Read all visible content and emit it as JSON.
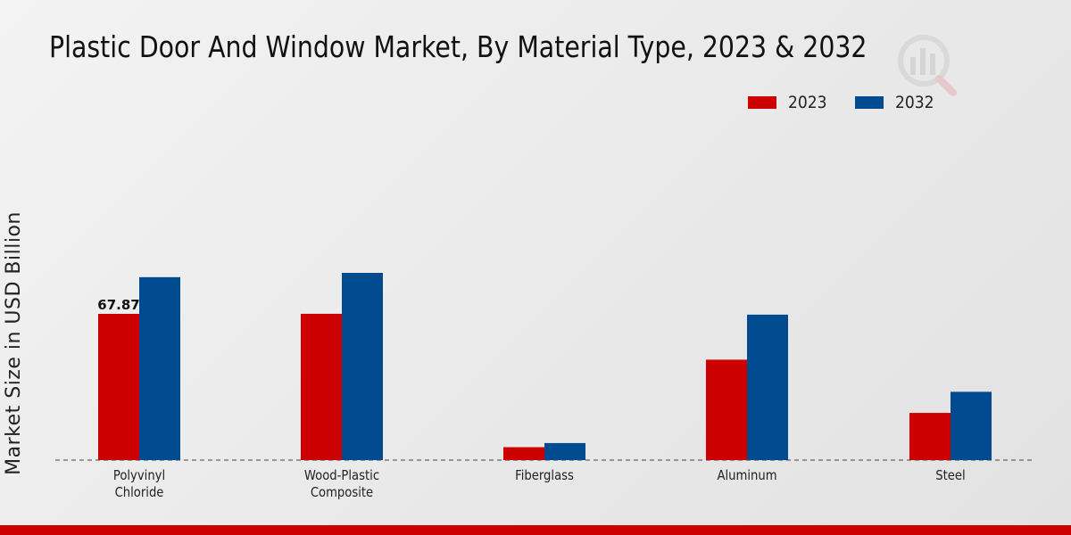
{
  "colors": {
    "series_2023": "#cc0000",
    "series_2032": "#004a8f",
    "bottom_bar": "#cc0000"
  },
  "chart_data": {
    "type": "bar",
    "title": "Plastic Door And Window Market, By Material Type, 2023 & 2032",
    "xlabel": "",
    "ylabel": "Market Size in USD Billion",
    "categories": [
      "Polyvinyl Chloride",
      "Wood-Plastic Composite",
      "Fiberglass",
      "Aluminum",
      "Steel"
    ],
    "category_lines": [
      [
        "Polyvinyl",
        "Chloride"
      ],
      [
        "Wood-Plastic",
        "Composite"
      ],
      [
        "Fiberglass"
      ],
      [
        "Aluminum"
      ],
      [
        "Steel"
      ]
    ],
    "series": [
      {
        "name": "2023",
        "values": [
          67.87,
          67.9,
          6.0,
          46.6,
          21.9
        ]
      },
      {
        "name": "2032",
        "values": [
          84.9,
          86.9,
          7.9,
          67.5,
          31.7
        ]
      }
    ],
    "data_labels": [
      {
        "series": 0,
        "category": 0,
        "text": "67.87"
      }
    ],
    "ylim": [
      0,
      120
    ],
    "grid": false,
    "legend_position": "top-right"
  }
}
